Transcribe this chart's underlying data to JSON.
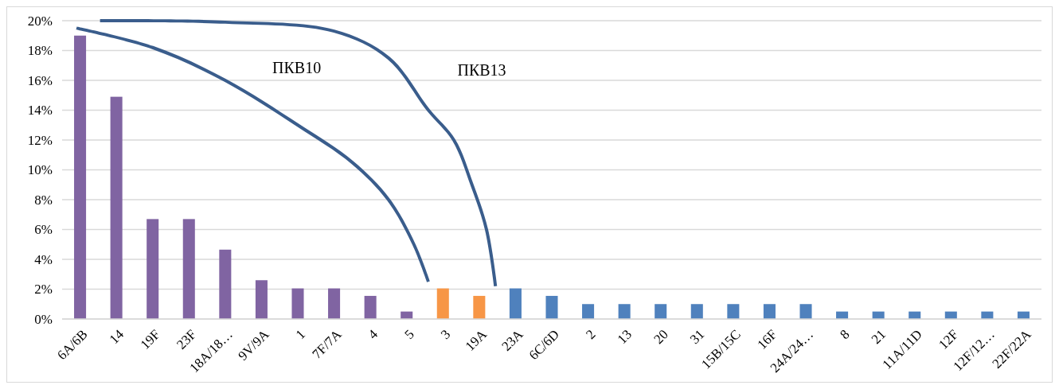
{
  "chart_data": {
    "type": "bar",
    "categories": [
      "6A/6B",
      "14",
      "19F",
      "23F",
      "18A/18…",
      "9V/9A",
      "1",
      "7F/7A",
      "4",
      "5",
      "3",
      "19A",
      "23A",
      "6C/6D",
      "2",
      "13",
      "20",
      "31",
      "15B/15C",
      "16F",
      "24A/24…",
      "8",
      "21",
      "11A/11D",
      "12F",
      "12F/12…",
      "22F/22A"
    ],
    "values": [
      19,
      14.9,
      6.7,
      6.7,
      4.65,
      2.6,
      2.05,
      2.05,
      1.55,
      0.5,
      2.05,
      1.55,
      2.05,
      1.55,
      1,
      1,
      1,
      1,
      1,
      1,
      1,
      0.5,
      0.5,
      0.5,
      0.5,
      0.5,
      0.5
    ],
    "colors": [
      "#8064a2",
      "#8064a2",
      "#8064a2",
      "#8064a2",
      "#8064a2",
      "#8064a2",
      "#8064a2",
      "#8064a2",
      "#8064a2",
      "#8064a2",
      "#f79646",
      "#f79646",
      "#4f81bd",
      "#4f81bd",
      "#4f81bd",
      "#4f81bd",
      "#4f81bd",
      "#4f81bd",
      "#4f81bd",
      "#4f81bd",
      "#4f81bd",
      "#4f81bd",
      "#4f81bd",
      "#4f81bd",
      "#4f81bd",
      "#4f81bd",
      "#4f81bd"
    ],
    "ylim": [
      0,
      20
    ],
    "yticks": [
      {
        "value": 0,
        "label": "0%"
      },
      {
        "value": 2,
        "label": "2%"
      },
      {
        "value": 4,
        "label": "4%"
      },
      {
        "value": 6,
        "label": "6%"
      },
      {
        "value": 8,
        "label": "8%"
      },
      {
        "value": 10,
        "label": "10%"
      },
      {
        "value": 12,
        "label": "12%"
      },
      {
        "value": 14,
        "label": "14%"
      },
      {
        "value": 16,
        "label": "16%"
      },
      {
        "value": 18,
        "label": "18%"
      },
      {
        "value": 20,
        "label": "20%"
      }
    ],
    "grid": "y",
    "annotations": [
      "ПКВ10",
      "ПКВ13"
    ]
  }
}
